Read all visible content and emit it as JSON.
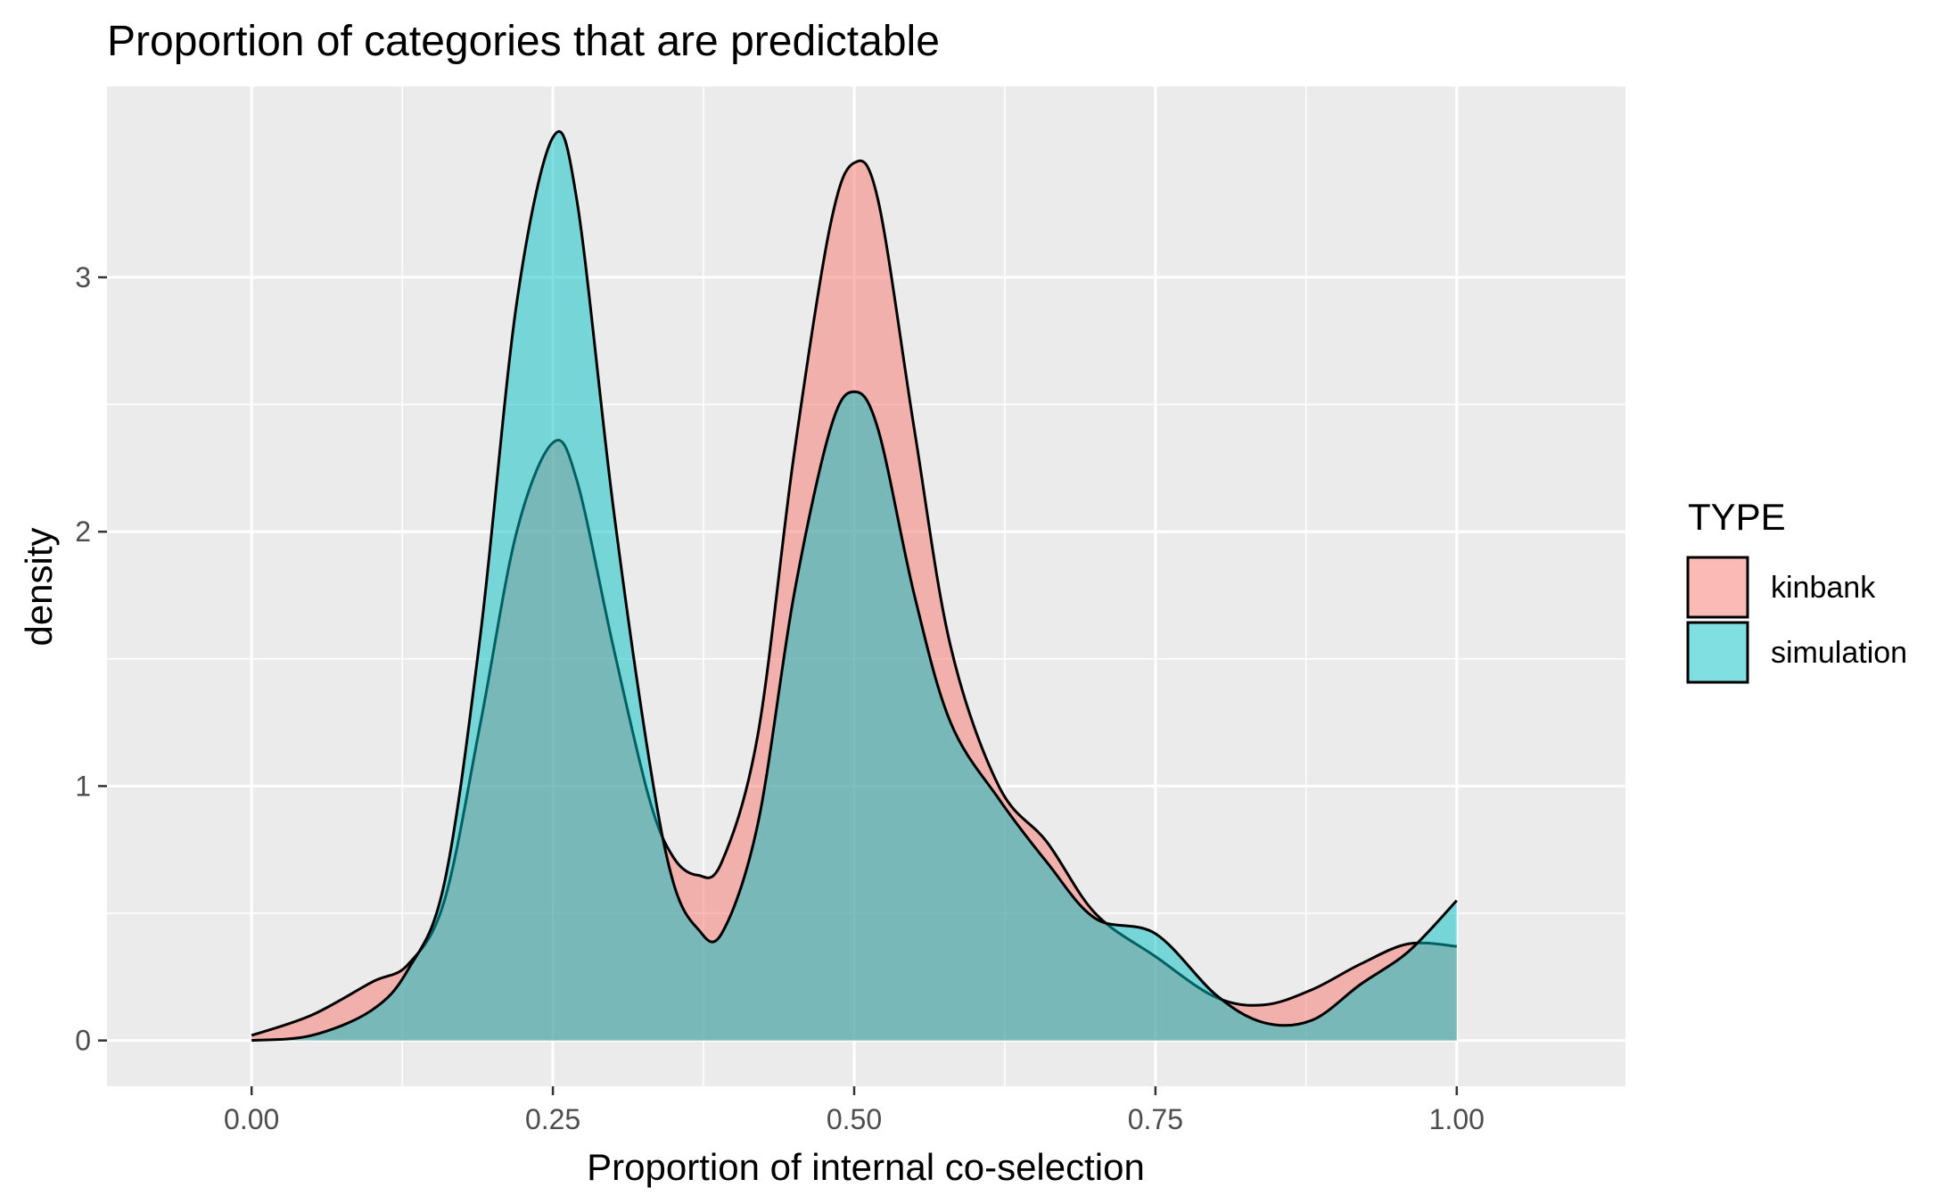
{
  "chart_data": {
    "type": "area",
    "title": "Proportion of categories that are predictable",
    "xlabel": "Proportion of internal co-selection",
    "ylabel": "density",
    "xlim": [
      -0.12,
      1.14
    ],
    "ylim": [
      -0.18,
      3.75
    ],
    "x_ticks": [
      0.0,
      0.25,
      0.5,
      0.75,
      1.0
    ],
    "x_tick_labels": [
      "0.00",
      "0.25",
      "0.50",
      "0.75",
      "1.00"
    ],
    "y_ticks": [
      0,
      1,
      2,
      3
    ],
    "y_tick_labels": [
      "0",
      "1",
      "2",
      "3"
    ],
    "grid": true,
    "legend": {
      "title": "TYPE",
      "position": "right",
      "entries": [
        "kinbank",
        "simulation"
      ]
    },
    "colors": {
      "kinbank": "#F8766D",
      "simulation": "#00BFC4",
      "panel_bg": "#EBEBEB",
      "grid": "#FFFFFF",
      "outline": "#000000"
    },
    "fill_opacity": 0.5,
    "series": [
      {
        "name": "kinbank",
        "x": [
          0.0,
          0.05,
          0.1,
          0.13,
          0.16,
          0.19,
          0.22,
          0.25,
          0.27,
          0.3,
          0.33,
          0.35,
          0.37,
          0.39,
          0.42,
          0.45,
          0.48,
          0.5,
          0.52,
          0.55,
          0.58,
          0.62,
          0.66,
          0.7,
          0.75,
          0.8,
          0.84,
          0.88,
          0.92,
          0.96,
          1.0
        ],
        "y": [
          0.02,
          0.1,
          0.23,
          0.3,
          0.55,
          1.25,
          2.0,
          2.35,
          2.2,
          1.55,
          0.95,
          0.72,
          0.65,
          0.7,
          1.2,
          2.3,
          3.2,
          3.45,
          3.3,
          2.4,
          1.55,
          1.0,
          0.78,
          0.5,
          0.33,
          0.17,
          0.14,
          0.2,
          0.3,
          0.38,
          0.37
        ]
      },
      {
        "name": "simulation",
        "x": [
          0.0,
          0.05,
          0.1,
          0.13,
          0.16,
          0.19,
          0.22,
          0.25,
          0.27,
          0.3,
          0.33,
          0.35,
          0.37,
          0.39,
          0.42,
          0.45,
          0.48,
          0.5,
          0.52,
          0.55,
          0.58,
          0.62,
          0.66,
          0.7,
          0.75,
          0.8,
          0.84,
          0.88,
          0.92,
          0.96,
          1.0
        ],
        "y": [
          0.0,
          0.02,
          0.12,
          0.28,
          0.62,
          1.6,
          2.9,
          3.55,
          3.3,
          2.1,
          1.1,
          0.62,
          0.44,
          0.42,
          0.85,
          1.75,
          2.4,
          2.55,
          2.4,
          1.75,
          1.25,
          0.95,
          0.7,
          0.48,
          0.42,
          0.18,
          0.07,
          0.08,
          0.22,
          0.35,
          0.55
        ]
      }
    ]
  }
}
